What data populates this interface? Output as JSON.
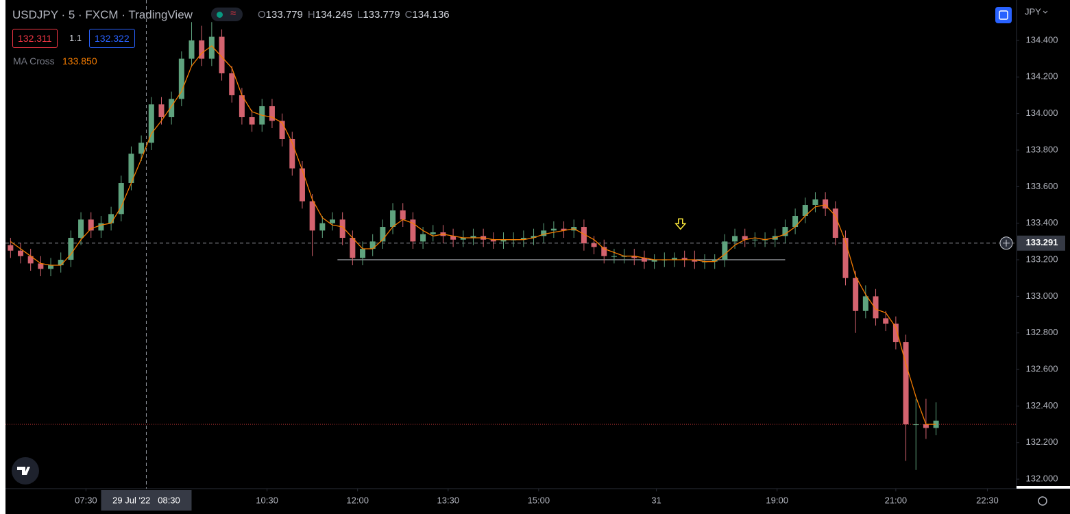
{
  "header": {
    "symbol": "USDJPY · 5 · FXCM · TradingView",
    "ohlc": [
      {
        "label": "O",
        "value": "133.779"
      },
      {
        "label": "H",
        "value": "134.245"
      },
      {
        "label": "L",
        "value": "133.779"
      },
      {
        "label": "C",
        "value": "134.136"
      }
    ]
  },
  "trade": {
    "sell": "132.311",
    "spread": "1.1",
    "buy": "132.322"
  },
  "indicator": {
    "name": "MA Cross",
    "value": "133.850"
  },
  "chart_data": {
    "type": "candlestick",
    "currency": "JPY",
    "up_color": "#5fa37e",
    "down_color": "#d4636f",
    "ma_color": "#f57c00",
    "open": [
      133.28,
      133.25,
      133.22,
      133.18,
      133.15,
      133.17,
      133.2,
      133.32,
      133.42,
      133.36,
      133.4,
      133.45,
      133.62,
      133.78,
      133.84,
      134.05,
      133.98,
      134.08,
      134.3,
      134.4,
      134.3,
      134.42,
      134.22,
      134.1,
      133.98,
      133.94,
      134.04,
      133.96,
      133.86,
      133.7,
      133.52,
      133.36,
      133.4,
      133.42,
      133.32,
      133.21,
      133.26,
      133.3,
      133.38,
      133.47,
      133.42,
      133.3,
      133.34,
      133.35,
      133.33,
      133.31,
      133.32,
      133.33,
      133.31,
      133.3,
      133.31,
      133.31,
      133.32,
      133.33,
      133.36,
      133.37,
      133.36,
      133.38,
      133.29,
      133.27,
      133.22,
      133.22,
      133.22,
      133.21,
      133.19,
      133.2,
      133.2,
      133.21,
      133.2,
      133.19,
      133.19,
      133.2,
      133.3,
      133.33,
      133.31,
      133.31,
      133.31,
      133.33,
      133.38,
      133.44,
      133.5,
      133.53,
      133.48,
      133.32,
      133.1,
      132.92,
      133.0,
      132.88,
      132.85,
      132.75,
      132.3,
      132.3,
      132.28
    ],
    "high": [
      133.32,
      133.29,
      133.26,
      133.22,
      133.21,
      133.24,
      133.36,
      133.46,
      133.46,
      133.44,
      133.49,
      133.66,
      133.82,
      133.88,
      134.09,
      134.09,
      134.12,
      134.34,
      134.5,
      134.48,
      134.5,
      134.46,
      134.26,
      134.14,
      134.02,
      134.08,
      134.08,
      134.0,
      133.9,
      133.74,
      133.56,
      133.44,
      133.46,
      133.46,
      133.36,
      133.3,
      133.34,
      133.42,
      133.51,
      133.51,
      133.46,
      133.38,
      133.39,
      133.39,
      133.37,
      133.36,
      133.37,
      133.37,
      133.35,
      133.35,
      133.35,
      133.36,
      133.37,
      133.4,
      133.41,
      133.41,
      133.42,
      133.42,
      133.33,
      133.31,
      133.26,
      133.26,
      133.26,
      133.25,
      133.23,
      133.24,
      133.24,
      133.25,
      133.25,
      133.23,
      133.23,
      133.34,
      133.37,
      133.37,
      133.35,
      133.35,
      133.37,
      133.42,
      133.48,
      133.54,
      133.57,
      133.57,
      133.52,
      133.36,
      133.14,
      133.06,
      133.04,
      132.92,
      132.89,
      132.79,
      132.44,
      132.44,
      132.42
    ],
    "low": [
      133.21,
      133.18,
      133.14,
      133.11,
      133.11,
      133.13,
      133.16,
      133.28,
      133.32,
      133.32,
      133.36,
      133.41,
      133.58,
      133.74,
      133.8,
      133.94,
      133.94,
      134.04,
      134.26,
      134.26,
      134.26,
      134.18,
      134.06,
      133.94,
      133.9,
      133.9,
      133.92,
      133.82,
      133.66,
      133.48,
      133.22,
      133.32,
      133.36,
      133.28,
      133.17,
      133.17,
      133.22,
      133.26,
      133.34,
      133.38,
      133.26,
      133.26,
      133.3,
      133.29,
      133.27,
      133.27,
      133.28,
      133.27,
      133.26,
      133.26,
      133.27,
      133.27,
      133.28,
      133.29,
      133.32,
      133.32,
      133.32,
      133.25,
      133.23,
      133.18,
      133.18,
      133.18,
      133.17,
      133.15,
      133.15,
      133.16,
      133.16,
      133.16,
      133.15,
      133.15,
      133.15,
      133.16,
      133.26,
      133.27,
      133.27,
      133.27,
      133.27,
      133.29,
      133.34,
      133.4,
      133.46,
      133.44,
      133.28,
      133.06,
      132.8,
      132.88,
      132.84,
      132.81,
      132.71,
      132.1,
      132.05,
      132.22,
      132.24
    ],
    "close": [
      133.25,
      133.22,
      133.18,
      133.15,
      133.17,
      133.2,
      133.32,
      133.42,
      133.36,
      133.4,
      133.45,
      133.62,
      133.78,
      133.84,
      134.05,
      133.98,
      134.08,
      134.3,
      134.4,
      134.3,
      134.42,
      134.22,
      134.1,
      133.98,
      133.94,
      134.04,
      133.96,
      133.86,
      133.7,
      133.52,
      133.36,
      133.4,
      133.42,
      133.32,
      133.21,
      133.26,
      133.3,
      133.38,
      133.47,
      133.42,
      133.3,
      133.34,
      133.35,
      133.33,
      133.31,
      133.32,
      133.33,
      133.31,
      133.3,
      133.31,
      133.31,
      133.32,
      133.33,
      133.36,
      133.37,
      133.36,
      133.38,
      133.29,
      133.27,
      133.22,
      133.22,
      133.22,
      133.21,
      133.19,
      133.2,
      133.2,
      133.21,
      133.2,
      133.19,
      133.19,
      133.2,
      133.3,
      133.33,
      133.31,
      133.31,
      133.31,
      133.33,
      133.38,
      133.44,
      133.5,
      133.53,
      133.48,
      133.32,
      133.1,
      132.92,
      133.0,
      132.88,
      132.85,
      132.75,
      132.3,
      132.3,
      132.28,
      132.32
    ],
    "ma": [
      133.3,
      133.26,
      133.22,
      133.18,
      133.17,
      133.17,
      133.23,
      133.31,
      133.37,
      133.39,
      133.4,
      133.49,
      133.62,
      133.75,
      133.89,
      133.96,
      134.04,
      134.12,
      134.26,
      134.33,
      134.37,
      134.31,
      134.25,
      134.1,
      134.01,
      133.99,
      133.98,
      133.95,
      133.84,
      133.69,
      133.53,
      133.43,
      133.39,
      133.38,
      133.32,
      133.26,
      133.26,
      133.31,
      133.38,
      133.42,
      133.4,
      133.36,
      133.33,
      133.34,
      133.33,
      133.32,
      133.32,
      133.32,
      133.31,
      133.31,
      133.31,
      133.31,
      133.32,
      133.34,
      133.35,
      133.36,
      133.37,
      133.34,
      133.31,
      133.26,
      133.24,
      133.22,
      133.22,
      133.21,
      133.2,
      133.2,
      133.2,
      133.2,
      133.2,
      133.19,
      133.19,
      133.23,
      133.28,
      133.31,
      133.32,
      133.31,
      133.32,
      133.34,
      133.38,
      133.44,
      133.49,
      133.5,
      133.44,
      133.3,
      133.11,
      133.01,
      132.93,
      132.91,
      132.83,
      132.63,
      132.45,
      132.3,
      132.3
    ],
    "ylim": [
      131.948,
      134.621
    ],
    "yticks": [
      {
        "value": 132.0,
        "label": "132.000"
      },
      {
        "value": 132.2,
        "label": "132.200"
      },
      {
        "value": 132.4,
        "label": "132.400"
      },
      {
        "value": 132.6,
        "label": "132.600"
      },
      {
        "value": 132.8,
        "label": "132.800"
      },
      {
        "value": 133.0,
        "label": "133.000"
      },
      {
        "value": 133.2,
        "label": "133.200"
      },
      {
        "value": 133.4,
        "label": "133.400"
      },
      {
        "value": 133.6,
        "label": "133.600"
      },
      {
        "value": 133.8,
        "label": "133.800"
      },
      {
        "value": 134.0,
        "label": "134.000"
      },
      {
        "value": 134.2,
        "label": "134.200"
      },
      {
        "value": 134.4,
        "label": "134.400"
      }
    ],
    "xlim": [
      -0.5,
      100
    ],
    "xticks": [
      {
        "value": 7.5,
        "label": "07:30"
      },
      {
        "value": 25.5,
        "label": "10:30"
      },
      {
        "value": 34.5,
        "label": "12:00"
      },
      {
        "value": 43.5,
        "label": "13:30"
      },
      {
        "value": 52.5,
        "label": "15:00"
      },
      {
        "value": 64.2,
        "label": "31"
      },
      {
        "value": 76.2,
        "label": "19:00"
      },
      {
        "value": 88,
        "label": "21:00"
      },
      {
        "value": 97.1,
        "label": "22:30"
      }
    ],
    "crosshair": {
      "x": 13.5,
      "x_label": "29 Jul '22   08:30",
      "price": 133.291
    },
    "support": {
      "price": 133.2,
      "from": 32.5,
      "to": 77
    },
    "last_price_line": 132.3,
    "marker": {
      "x": 66.6,
      "price": 133.39
    }
  }
}
